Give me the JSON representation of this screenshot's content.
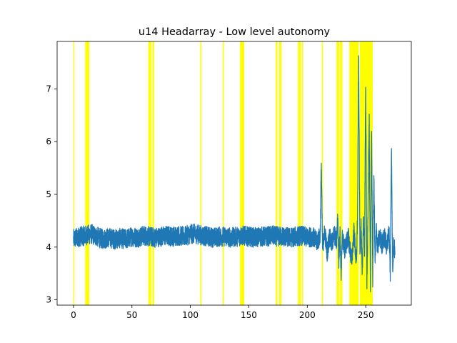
{
  "chart_data": {
    "type": "line",
    "title": "u14 Headarray - Low level autonomy",
    "xlabel": "",
    "ylabel": "",
    "xlim": [
      -14,
      289
    ],
    "ylim": [
      2.9,
      7.9
    ],
    "xticks": [
      0,
      50,
      100,
      150,
      200,
      250
    ],
    "yticks": [
      3,
      4,
      5,
      6,
      7
    ],
    "grid": false,
    "series": [
      {
        "color": "#1f77b4",
        "points": [
          [
            0,
            4.15
          ],
          [
            5,
            4.2
          ],
          [
            10,
            4.22
          ],
          [
            15,
            4.25
          ],
          [
            20,
            4.2
          ],
          [
            25,
            4.15
          ],
          [
            30,
            4.18
          ],
          [
            35,
            4.15
          ],
          [
            40,
            4.17
          ],
          [
            45,
            4.15
          ],
          [
            50,
            4.2
          ],
          [
            55,
            4.18
          ],
          [
            60,
            4.22
          ],
          [
            65,
            4.2
          ],
          [
            70,
            4.18
          ],
          [
            75,
            4.2
          ],
          [
            80,
            4.22
          ],
          [
            85,
            4.2
          ],
          [
            90,
            4.22
          ],
          [
            95,
            4.2
          ],
          [
            100,
            4.25
          ],
          [
            105,
            4.25
          ],
          [
            110,
            4.22
          ],
          [
            115,
            4.2
          ],
          [
            120,
            4.18
          ],
          [
            125,
            4.2
          ],
          [
            130,
            4.2
          ],
          [
            135,
            4.18
          ],
          [
            140,
            4.2
          ],
          [
            145,
            4.22
          ],
          [
            150,
            4.2
          ],
          [
            155,
            4.18
          ],
          [
            160,
            4.2
          ],
          [
            165,
            4.2
          ],
          [
            170,
            4.22
          ],
          [
            175,
            4.2
          ],
          [
            180,
            4.2
          ],
          [
            185,
            4.18
          ],
          [
            190,
            4.2
          ],
          [
            195,
            4.22
          ],
          [
            200,
            4.18
          ],
          [
            205,
            4.2
          ],
          [
            208,
            4.1
          ],
          [
            211,
            4.2
          ],
          [
            212,
            5.6
          ],
          [
            213,
            4.0
          ],
          [
            215,
            4.3
          ],
          [
            217,
            3.9
          ],
          [
            219,
            4.2
          ],
          [
            221,
            4.05
          ],
          [
            223,
            4.25
          ],
          [
            225,
            4.1
          ],
          [
            226,
            4.55
          ],
          [
            227,
            3.75
          ],
          [
            228,
            4.3
          ],
          [
            229,
            3.5
          ],
          [
            230,
            4.2
          ],
          [
            232,
            3.95
          ],
          [
            235,
            4.2
          ],
          [
            238,
            3.75
          ],
          [
            240,
            4.3
          ],
          [
            242,
            3.65
          ],
          [
            243,
            4.6
          ],
          [
            244,
            7.6
          ],
          [
            245,
            3.95
          ],
          [
            246,
            4.4
          ],
          [
            247,
            3.4
          ],
          [
            248,
            4.6
          ],
          [
            249,
            3.9
          ],
          [
            250,
            7.2
          ],
          [
            251,
            3.2
          ],
          [
            252,
            4.8
          ],
          [
            253,
            6.4
          ],
          [
            254,
            3.3
          ],
          [
            255,
            6.2
          ],
          [
            256,
            3.4
          ],
          [
            257,
            5.35
          ],
          [
            258,
            3.7
          ],
          [
            259,
            4.35
          ],
          [
            260,
            4.0
          ],
          [
            262,
            4.2
          ],
          [
            264,
            4.05
          ],
          [
            266,
            4.2
          ],
          [
            268,
            4.0
          ],
          [
            270,
            4.3
          ],
          [
            271,
            3.5
          ],
          [
            272,
            5.9
          ],
          [
            273,
            3.6
          ],
          [
            274,
            4.1
          ],
          [
            275,
            3.85
          ]
        ]
      }
    ],
    "highlight_color": "#ffff00",
    "highlight_bands": [
      [
        0,
        0.8
      ],
      [
        10,
        13.5
      ],
      [
        64,
        66.5
      ],
      [
        67.5,
        69
      ],
      [
        108.5,
        109.5
      ],
      [
        127.5,
        128.5
      ],
      [
        142.5,
        146
      ],
      [
        173,
        174.5
      ],
      [
        176,
        178
      ],
      [
        192,
        194.5
      ],
      [
        195.5,
        196.5
      ],
      [
        212.5,
        213.5
      ],
      [
        225,
        227.5
      ],
      [
        228,
        230
      ],
      [
        236,
        244
      ],
      [
        245,
        256
      ]
    ]
  }
}
